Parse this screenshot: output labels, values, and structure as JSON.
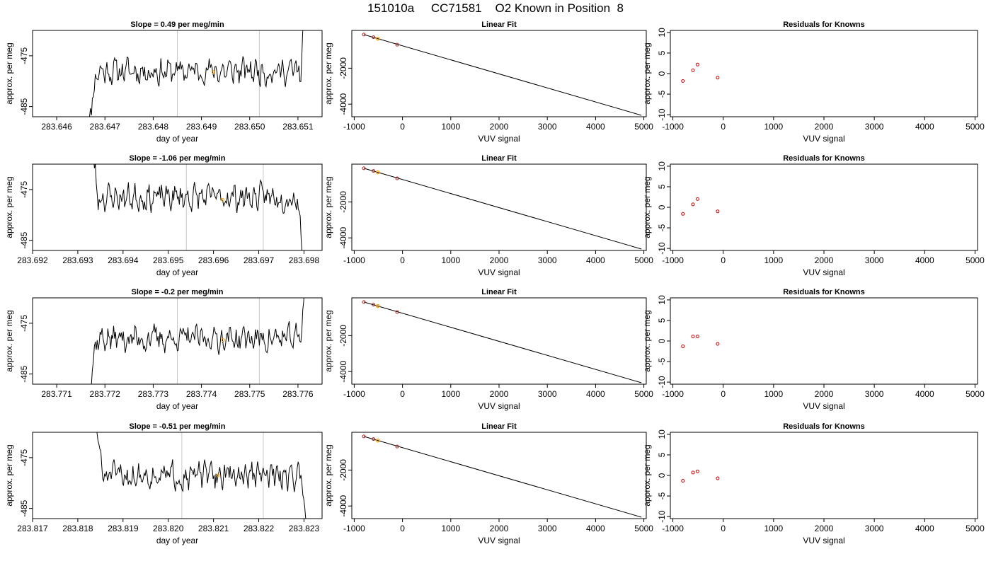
{
  "page": {
    "title": "151010a     CC71581    O2 Known in Position  8"
  },
  "chart_data": [
    {
      "type": "line",
      "title": "Slope =  0.49  per meg/min",
      "xlabel": "day of year",
      "ylabel": "approx. per meg",
      "xlim": [
        283.6455,
        283.6515
      ],
      "ylim": [
        -487,
        -470
      ],
      "xticks": [
        283.646,
        283.647,
        283.648,
        283.649,
        283.65,
        283.651
      ],
      "yticks": [
        -485,
        -475
      ],
      "vlines": [
        283.6485,
        283.6502
      ],
      "line": {
        "start": 283.6466,
        "end": 283.6512,
        "level": -478,
        "rise_start": 283.6469,
        "drop_end": 283.6512,
        "seed": 11
      },
      "marker": {
        "x": 283.64925,
        "y": -478.2
      }
    },
    {
      "type": "scatter",
      "title": "Linear Fit",
      "xlabel": "VUV signal",
      "ylabel": "approx. per meg",
      "xlim": [
        -1050,
        5050
      ],
      "ylim": [
        -4700,
        100
      ],
      "xticks": [
        -1000,
        0,
        1000,
        2000,
        3000,
        4000,
        5000
      ],
      "yticks": [
        -4000,
        -2000
      ],
      "fit": {
        "x": [
          -800,
          4950
        ],
        "y": [
          -130,
          -4620
        ]
      },
      "points": [
        {
          "x": -800,
          "y": -130
        },
        {
          "x": -600,
          "y": -280
        },
        {
          "x": -510,
          "y": -350
        },
        {
          "x": -110,
          "y": -690
        }
      ],
      "highlight": {
        "x": -510,
        "y": -355
      }
    },
    {
      "type": "scatter",
      "title": "Residuals for Knowns",
      "xlabel": "VUV signal",
      "ylabel": "approx. per meg",
      "xlim": [
        -1050,
        5050
      ],
      "ylim": [
        -10.5,
        10.5
      ],
      "xticks": [
        -1000,
        0,
        1000,
        2000,
        3000,
        4000,
        5000
      ],
      "yticks": [
        -10,
        -5,
        0,
        5,
        10
      ],
      "points": [
        {
          "x": -800,
          "y": -1.8
        },
        {
          "x": -600,
          "y": 0.8
        },
        {
          "x": -510,
          "y": 2.2
        },
        {
          "x": -110,
          "y": -1.0
        }
      ]
    },
    {
      "type": "line",
      "title": "Slope =  -1.06  per meg/min",
      "xlabel": "day of year",
      "ylabel": "approx. per meg",
      "xlim": [
        283.692,
        283.6984
      ],
      "ylim": [
        -487,
        -470
      ],
      "xticks": [
        283.692,
        283.693,
        283.694,
        283.695,
        283.696,
        283.697,
        283.698
      ],
      "yticks": [
        -485,
        -475
      ],
      "vlines": [
        283.6954,
        283.6971
      ],
      "line": {
        "start": 283.6932,
        "end": 283.698,
        "level": -476.5,
        "rise_start": 283.6935,
        "drop_end": 283.698,
        "seed": 23,
        "from_top": true
      },
      "marker": {
        "x": 283.6962,
        "y": -477
      }
    },
    {
      "type": "scatter",
      "title": "Linear Fit",
      "xlabel": "VUV signal",
      "ylabel": "approx. per meg",
      "xlim": [
        -1050,
        5050
      ],
      "ylim": [
        -4700,
        100
      ],
      "xticks": [
        -1000,
        0,
        1000,
        2000,
        3000,
        4000,
        5000
      ],
      "yticks": [
        -4000,
        -2000
      ],
      "fit": {
        "x": [
          -800,
          4950
        ],
        "y": [
          -130,
          -4620
        ]
      },
      "points": [
        {
          "x": -800,
          "y": -130
        },
        {
          "x": -600,
          "y": -280
        },
        {
          "x": -510,
          "y": -350
        },
        {
          "x": -110,
          "y": -690
        }
      ],
      "highlight": {
        "x": -510,
        "y": -355
      }
    },
    {
      "type": "scatter",
      "title": "Residuals for Knowns",
      "xlabel": "VUV signal",
      "ylabel": "approx. per meg",
      "xlim": [
        -1050,
        5050
      ],
      "ylim": [
        -10.5,
        10.5
      ],
      "xticks": [
        -1000,
        0,
        1000,
        2000,
        3000,
        4000,
        5000
      ],
      "yticks": [
        -10,
        -5,
        0,
        5,
        10
      ],
      "points": [
        {
          "x": -800,
          "y": -1.6
        },
        {
          "x": -600,
          "y": 0.7
        },
        {
          "x": -510,
          "y": 2.0
        },
        {
          "x": -110,
          "y": -1.0
        }
      ]
    },
    {
      "type": "line",
      "title": "Slope =  -0.2  per meg/min",
      "xlabel": "day of year",
      "ylabel": "approx. per meg",
      "xlim": [
        283.7705,
        283.7765
      ],
      "ylim": [
        -487,
        -470
      ],
      "xticks": [
        283.771,
        283.772,
        283.773,
        283.774,
        283.775,
        283.776
      ],
      "yticks": [
        -485,
        -475
      ],
      "vlines": [
        283.7735,
        283.7752
      ],
      "line": {
        "start": 283.7716,
        "end": 283.7762,
        "level": -478,
        "rise_start": 283.7719,
        "drop_end": 283.7762,
        "seed": 37
      },
      "marker": {
        "x": 283.77445,
        "y": -478.3
      }
    },
    {
      "type": "scatter",
      "title": "Linear Fit",
      "xlabel": "VUV signal",
      "ylabel": "approx. per meg",
      "xlim": [
        -1050,
        5050
      ],
      "ylim": [
        -4700,
        100
      ],
      "xticks": [
        -1000,
        0,
        1000,
        2000,
        3000,
        4000,
        5000
      ],
      "yticks": [
        -4000,
        -2000
      ],
      "fit": {
        "x": [
          -800,
          4950
        ],
        "y": [
          -130,
          -4620
        ]
      },
      "points": [
        {
          "x": -800,
          "y": -130
        },
        {
          "x": -600,
          "y": -280
        },
        {
          "x": -510,
          "y": -350
        },
        {
          "x": -110,
          "y": -690
        }
      ],
      "highlight": {
        "x": -510,
        "y": -355
      }
    },
    {
      "type": "scatter",
      "title": "Residuals for Knowns",
      "xlabel": "VUV signal",
      "ylabel": "approx. per meg",
      "xlim": [
        -1050,
        5050
      ],
      "ylim": [
        -10.5,
        10.5
      ],
      "xticks": [
        -1000,
        0,
        1000,
        2000,
        3000,
        4000,
        5000
      ],
      "yticks": [
        -10,
        -5,
        0,
        5,
        10
      ],
      "points": [
        {
          "x": -800,
          "y": -1.3
        },
        {
          "x": -600,
          "y": 1.1
        },
        {
          "x": -510,
          "y": 1.1
        },
        {
          "x": -110,
          "y": -0.7
        }
      ]
    },
    {
      "type": "line",
      "title": "Slope =  -0.51  per meg/min",
      "xlabel": "day of year",
      "ylabel": "approx. per meg",
      "xlim": [
        283.817,
        283.8234
      ],
      "ylim": [
        -487,
        -470
      ],
      "xticks": [
        283.817,
        283.818,
        283.819,
        283.82,
        283.821,
        283.822,
        283.823
      ],
      "yticks": [
        -485,
        -475
      ],
      "vlines": [
        283.8203,
        283.8221
      ],
      "line": {
        "start": 283.8183,
        "end": 283.8231,
        "level": -478.5,
        "rise_start": 283.8186,
        "drop_end": 283.8231,
        "seed": 51,
        "from_top": true
      },
      "marker": {
        "x": 283.8211,
        "y": -478.5
      }
    },
    {
      "type": "scatter",
      "title": "Linear Fit",
      "xlabel": "VUV signal",
      "ylabel": "approx. per meg",
      "xlim": [
        -1050,
        5050
      ],
      "ylim": [
        -4700,
        100
      ],
      "xticks": [
        -1000,
        0,
        1000,
        2000,
        3000,
        4000,
        5000
      ],
      "yticks": [
        -4000,
        -2000
      ],
      "fit": {
        "x": [
          -800,
          4950
        ],
        "y": [
          -130,
          -4620
        ]
      },
      "points": [
        {
          "x": -800,
          "y": -130
        },
        {
          "x": -600,
          "y": -280
        },
        {
          "x": -510,
          "y": -350
        },
        {
          "x": -110,
          "y": -690
        }
      ],
      "highlight": {
        "x": -510,
        "y": -355
      }
    },
    {
      "type": "scatter",
      "title": "Residuals for Knowns",
      "xlabel": "VUV signal",
      "ylabel": "approx. per meg",
      "xlim": [
        -1050,
        5050
      ],
      "ylim": [
        -10.5,
        10.5
      ],
      "xticks": [
        -1000,
        0,
        1000,
        2000,
        3000,
        4000,
        5000
      ],
      "yticks": [
        -10,
        -5,
        0,
        5,
        10
      ],
      "points": [
        {
          "x": -800,
          "y": -1.3
        },
        {
          "x": -600,
          "y": 0.7
        },
        {
          "x": -510,
          "y": 1.0
        },
        {
          "x": -110,
          "y": -0.7
        }
      ]
    }
  ],
  "colors": {
    "line": "#000000",
    "vline": "#c8c8c8",
    "highlight": "#ffa500",
    "residual": "#cc0000",
    "point": "#aa2222"
  }
}
